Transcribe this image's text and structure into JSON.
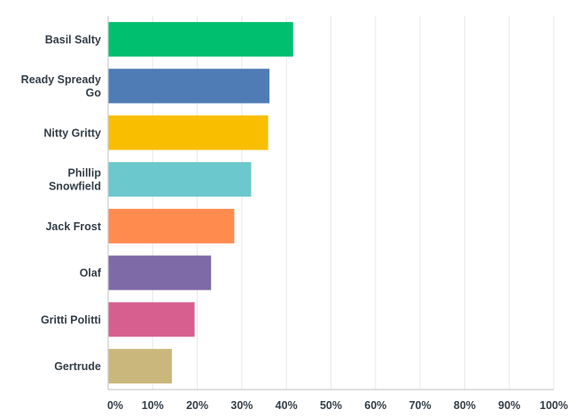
{
  "chart_data": {
    "type": "bar",
    "orientation": "horizontal",
    "categories": [
      [
        "Basil Salty"
      ],
      [
        "Ready Spready",
        "Go"
      ],
      [
        "Nitty Gritty"
      ],
      [
        "Phillip",
        "Snowfield"
      ],
      [
        "Jack Frost"
      ],
      [
        "Olaf"
      ],
      [
        "Gritti Politti"
      ],
      [
        "Gertrude"
      ]
    ],
    "values": [
      41.5,
      36.2,
      35.9,
      32.1,
      28.3,
      23.1,
      19.4,
      14.3
    ],
    "colors": [
      "#00bf6f",
      "#507cb6",
      "#f9be00",
      "#6bc8cd",
      "#ff8b4f",
      "#7f6aa8",
      "#d65f90",
      "#c9b77b"
    ],
    "xlim": [
      0,
      100
    ],
    "x_ticks": [
      "0%",
      "10%",
      "20%",
      "30%",
      "40%",
      "50%",
      "60%",
      "70%",
      "80%",
      "90%",
      "100%"
    ],
    "grid": true
  }
}
